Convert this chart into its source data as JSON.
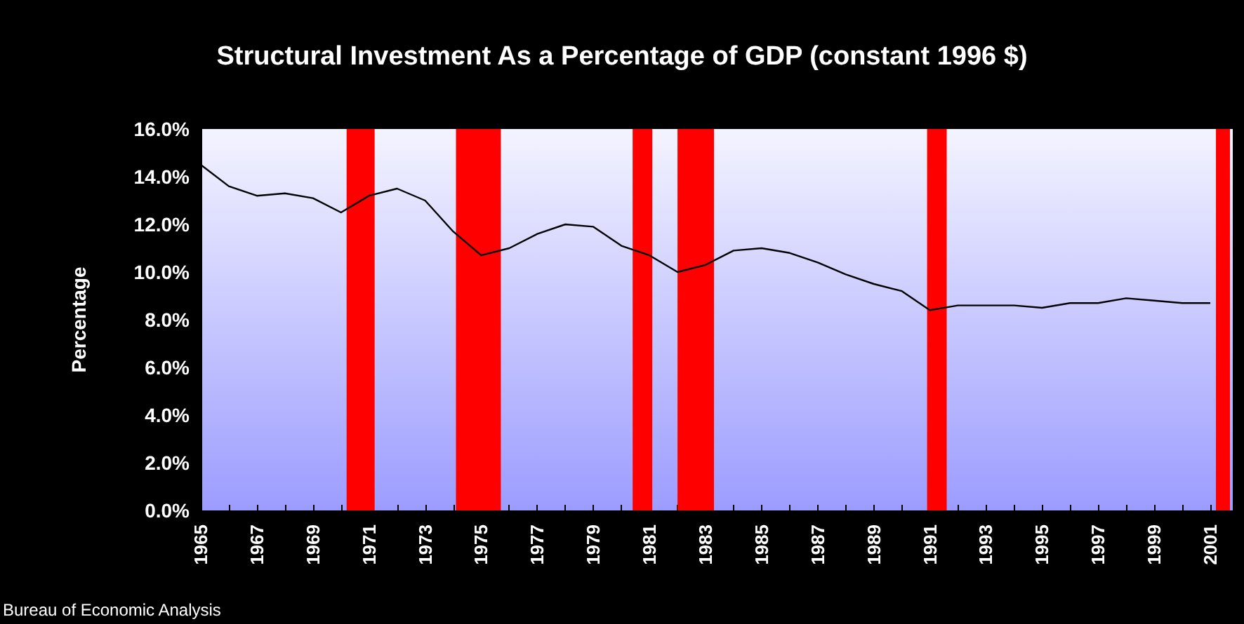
{
  "chart_data": {
    "type": "line",
    "title": "Structural Investment As a Percentage of GDP (constant 1996 $)",
    "ylabel": "Percentage",
    "x": [
      1965,
      1966,
      1967,
      1968,
      1969,
      1970,
      1971,
      1972,
      1973,
      1974,
      1975,
      1976,
      1977,
      1978,
      1979,
      1980,
      1981,
      1982,
      1983,
      1984,
      1985,
      1986,
      1987,
      1988,
      1989,
      1990,
      1991,
      1992,
      1993,
      1994,
      1995,
      1996,
      1997,
      1998,
      1999,
      2000,
      2001
    ],
    "series": [
      {
        "color": "#000000",
        "values": [
          14.5,
          13.6,
          13.2,
          13.3,
          13.1,
          12.5,
          13.2,
          13.5,
          13.0,
          11.7,
          10.7,
          11.0,
          11.6,
          12.0,
          11.9,
          11.1,
          10.7,
          10.0,
          10.3,
          10.9,
          11.0,
          10.8,
          10.4,
          9.9,
          9.5,
          9.2,
          8.4,
          8.6,
          8.6,
          8.6,
          8.5,
          8.7,
          8.7,
          8.9,
          8.8,
          8.7,
          8.7
        ]
      }
    ],
    "xlim": [
      1965,
      2001.8
    ],
    "xticks": [
      1965,
      {
        "value": 1966,
        "label": null
      },
      1967,
      {
        "value": 1968,
        "label": null
      },
      1969,
      {
        "value": 1970,
        "label": null
      },
      1971,
      {
        "value": 1972,
        "label": null
      },
      1973,
      {
        "value": 1974,
        "label": null
      },
      1975,
      {
        "value": 1976,
        "label": null
      },
      1977,
      {
        "value": 1978,
        "label": null
      },
      1979,
      {
        "value": 1980,
        "label": null
      },
      1981,
      {
        "value": 1982,
        "label": null
      },
      1983,
      {
        "value": 1984,
        "label": null
      },
      1985,
      {
        "value": 1986,
        "label": null
      },
      1987,
      {
        "value": 1988,
        "label": null
      },
      1989,
      {
        "value": 1990,
        "label": null
      },
      1991,
      {
        "value": 1992,
        "label": null
      },
      1993,
      {
        "value": 1994,
        "label": null
      },
      1995,
      {
        "value": 1996,
        "label": null
      },
      1997,
      {
        "value": 1998,
        "label": null
      },
      1999,
      {
        "value": 2000,
        "label": null
      },
      2001
    ],
    "ylim": [
      0,
      16
    ],
    "yticks": [
      {
        "value": 0,
        "label": "0.0%"
      },
      {
        "value": 2,
        "label": "2.0%"
      },
      {
        "value": 4,
        "label": "4.0%"
      },
      {
        "value": 6,
        "label": "6.0%"
      },
      {
        "value": 8,
        "label": "8.0%"
      },
      {
        "value": 10,
        "label": "10.0%"
      },
      {
        "value": 12,
        "label": "12.0%"
      },
      {
        "value": 14,
        "label": "14.0%"
      },
      {
        "value": 16,
        "label": "16.0%"
      }
    ],
    "bands": [
      {
        "axis": "x",
        "from": 1970.2,
        "to": 1971.2,
        "color": "#ff0000"
      },
      {
        "axis": "x",
        "from": 1974.1,
        "to": 1975.7,
        "color": "#ff0000"
      },
      {
        "axis": "x",
        "from": 1980.4,
        "to": 1981.1,
        "color": "#ff0000"
      },
      {
        "axis": "x",
        "from": 1982.0,
        "to": 1983.3,
        "color": "#ff0000"
      },
      {
        "axis": "x",
        "from": 1990.9,
        "to": 1991.6,
        "color": "#ff0000"
      },
      {
        "axis": "x",
        "from": 2001.2,
        "to": 2001.7,
        "color": "#ff0000"
      }
    ],
    "annotations": [
      "Bureau of Economic Analysis"
    ],
    "grid": false,
    "marker": "none",
    "line_style": "solid"
  }
}
